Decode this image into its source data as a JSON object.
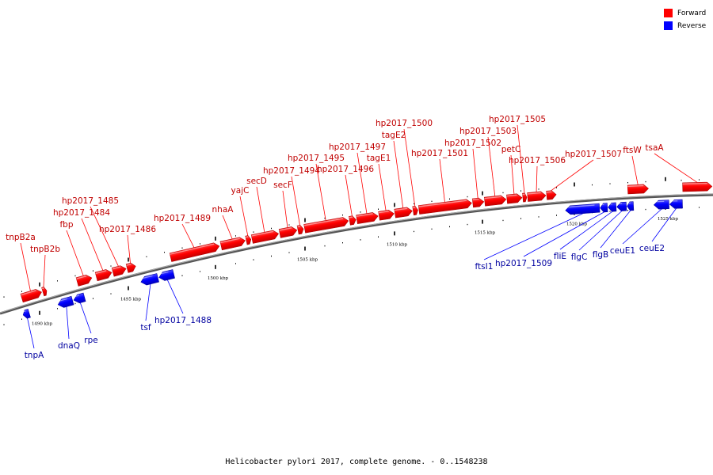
{
  "legend": {
    "forward_label": "Forward",
    "reverse_label": "Reverse",
    "forward_color": "#ff0000",
    "reverse_color": "#0000ff"
  },
  "caption": "Helicobacter pylori 2017, complete genome. - 0..1548238",
  "scale_ticks": [
    "1490 kbp",
    "1495 kbp",
    "1500 kbp",
    "1505 kbp",
    "1510 kbp",
    "1515 kbp",
    "1520 kbp",
    "1525 kbp"
  ],
  "forward_genes": [
    "tnpB2a",
    "tnpB2b",
    "fbp",
    "hp2017_1484",
    "hp2017_1485",
    "hp2017_1486",
    "hp2017_1489",
    "nhaA",
    "yajC",
    "secD",
    "secF",
    "hp2017_1494",
    "hp2017_1495",
    "hp2017_1496",
    "hp2017_1497",
    "tagE1",
    "tagE2",
    "hp2017_1500",
    "hp2017_1501",
    "hp2017_1502",
    "hp2017_1503",
    "petC",
    "hp2017_1505",
    "hp2017_1506",
    "hp2017_1507",
    "ftsW",
    "tsaA"
  ],
  "reverse_genes": [
    "tnpA",
    "dnaQ",
    "rpe",
    "tsf",
    "hp2017_1488",
    "ftsI1",
    "hp2017_1509",
    "fliE",
    "flgC",
    "flgB",
    "ceuE1",
    "ceuE2"
  ]
}
